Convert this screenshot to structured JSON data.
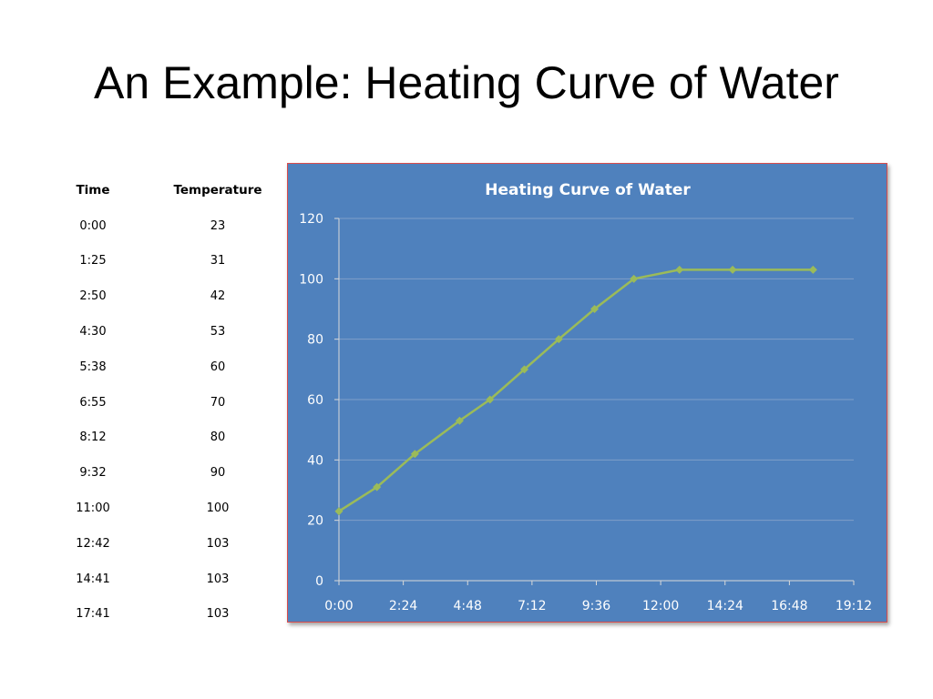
{
  "slide": {
    "title": "An Example: Heating Curve of Water"
  },
  "table": {
    "headers": [
      "Time",
      "Temperature"
    ],
    "rows": [
      [
        "0:00",
        "23"
      ],
      [
        "1:25",
        "31"
      ],
      [
        "2:50",
        "42"
      ],
      [
        "4:30",
        "53"
      ],
      [
        "5:38",
        "60"
      ],
      [
        "6:55",
        "70"
      ],
      [
        "8:12",
        "80"
      ],
      [
        "9:32",
        "90"
      ],
      [
        "11:00",
        "100"
      ],
      [
        "12:42",
        "103"
      ],
      [
        "14:41",
        "103"
      ],
      [
        "17:41",
        "103"
      ]
    ]
  },
  "chart_data": {
    "type": "line",
    "title": "Heating Curve of Water",
    "x": [
      "0:00",
      "1:25",
      "2:50",
      "4:30",
      "5:38",
      "6:55",
      "8:12",
      "9:32",
      "11:00",
      "12:42",
      "14:41",
      "17:41"
    ],
    "series": [
      {
        "values": [
          23,
          31,
          42,
          53,
          60,
          70,
          80,
          90,
          100,
          103,
          103,
          103
        ]
      }
    ],
    "xticks": [
      "0:00",
      "2:24",
      "4:48",
      "7:12",
      "9:36",
      "12:00",
      "14:24",
      "16:48",
      "19:12"
    ],
    "yticks": [
      "0",
      "20",
      "40",
      "60",
      "80",
      "100",
      "120"
    ],
    "xlim": [
      "0:00",
      "19:12"
    ],
    "ylim": [
      0,
      120
    ],
    "grid": true,
    "colors": {
      "background": "#4f81bd",
      "line": "#9bbb59",
      "grid": "#7f9fc9",
      "text": "#ffffff"
    }
  }
}
